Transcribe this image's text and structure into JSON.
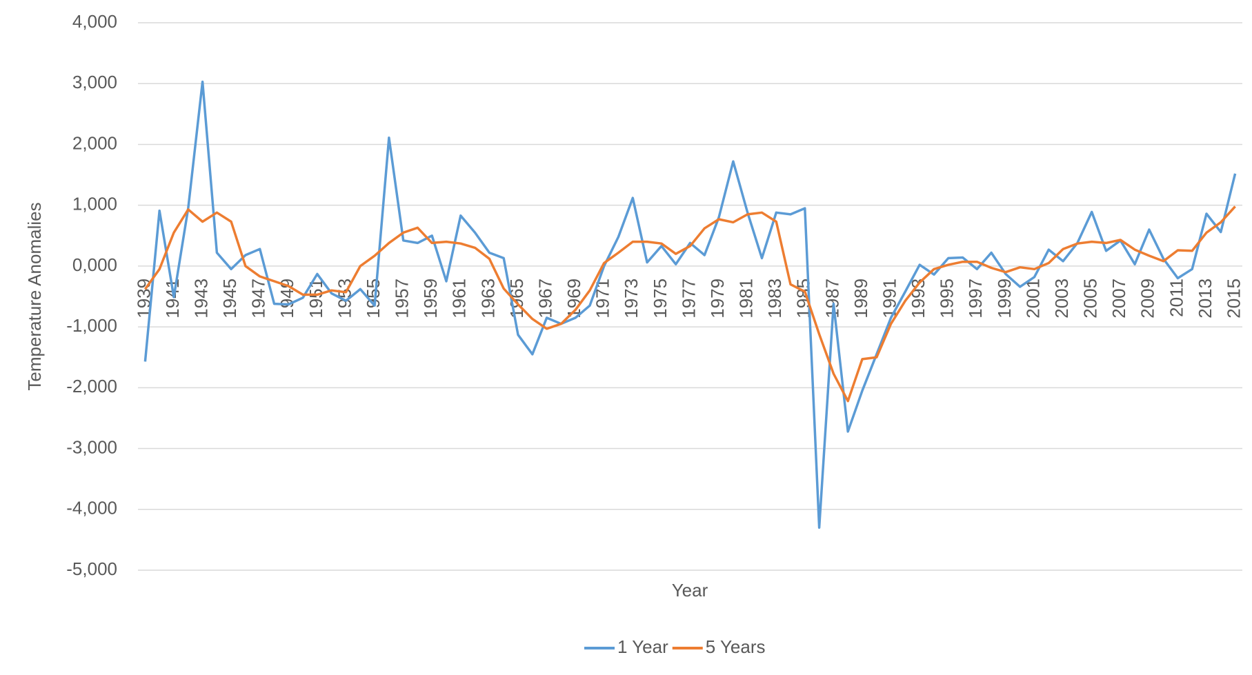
{
  "chart_data": {
    "type": "line",
    "x_label": "Year",
    "y_label": "Temperature Anomalies",
    "categories": [
      "1939",
      null,
      "1941",
      null,
      "1943",
      null,
      "1945",
      null,
      "1947",
      null,
      "1949",
      null,
      "1951",
      null,
      "1953",
      null,
      "1955",
      null,
      "1957",
      null,
      "1959",
      null,
      "1961",
      null,
      "1963",
      null,
      "1965",
      null,
      "1967",
      null,
      "1969",
      null,
      "1971",
      null,
      "1973",
      null,
      "1975",
      null,
      "1977",
      null,
      "1979",
      null,
      "1981",
      null,
      "1983",
      null,
      "1985",
      null,
      "1987",
      null,
      "1989",
      null,
      "1991",
      null,
      "1993",
      null,
      "1995",
      null,
      "1997",
      null,
      "1999",
      null,
      "2001",
      null,
      "2003",
      null,
      "2005",
      null,
      "2007",
      null,
      "2009",
      null,
      "2011",
      null,
      "2013",
      null,
      "2015"
    ],
    "series": [
      {
        "name": "1 Year",
        "color": "#5b9bd5",
        "values": [
          -1.57,
          0.91,
          -0.51,
          0.95,
          3.03,
          0.22,
          -0.05,
          0.18,
          0.28,
          -0.62,
          -0.63,
          -0.52,
          -0.13,
          -0.45,
          -0.57,
          -0.38,
          -0.65,
          2.11,
          0.42,
          0.38,
          0.5,
          -0.25,
          0.83,
          0.55,
          0.22,
          0.13,
          -1.13,
          -1.45,
          -0.85,
          -0.95,
          -0.85,
          -0.65,
          0.0,
          0.48,
          1.12,
          0.06,
          0.33,
          0.03,
          0.38,
          0.18,
          0.8,
          1.72,
          0.88,
          0.13,
          0.88,
          0.85,
          0.95,
          -4.3,
          -0.62,
          -2.72,
          -2.05,
          -1.45,
          -0.85,
          -0.42,
          0.02,
          -0.14,
          0.13,
          0.14,
          -0.05,
          0.22,
          -0.13,
          -0.34,
          -0.18,
          0.27,
          0.08,
          0.38,
          0.89,
          0.25,
          0.42,
          0.03,
          0.6,
          0.12,
          -0.2,
          -0.05,
          0.86,
          0.56,
          1.52
        ]
      },
      {
        "name": "5 Years",
        "color": "#ed7d31",
        "values": [
          -0.38,
          -0.05,
          0.55,
          0.93,
          0.73,
          0.88,
          0.73,
          0.0,
          -0.17,
          -0.25,
          -0.33,
          -0.47,
          -0.47,
          -0.4,
          -0.43,
          0.0,
          0.17,
          0.38,
          0.55,
          0.63,
          0.38,
          0.4,
          0.37,
          0.3,
          0.12,
          -0.37,
          -0.63,
          -0.87,
          -1.03,
          -0.95,
          -0.72,
          -0.4,
          0.05,
          0.22,
          0.4,
          0.4,
          0.37,
          0.2,
          0.33,
          0.62,
          0.77,
          0.72,
          0.85,
          0.88,
          0.73,
          -0.3,
          -0.42,
          -1.12,
          -1.77,
          -2.22,
          -1.53,
          -1.5,
          -0.95,
          -0.57,
          -0.27,
          -0.05,
          0.02,
          0.07,
          0.07,
          -0.03,
          -0.1,
          -0.02,
          -0.05,
          0.05,
          0.28,
          0.37,
          0.4,
          0.38,
          0.43,
          0.27,
          0.17,
          0.08,
          0.26,
          0.25,
          0.55,
          0.72,
          0.98
        ]
      }
    ],
    "ylim": [
      -5,
      4
    ],
    "yticks": [
      {
        "value": -5,
        "label": "-5,000"
      },
      {
        "value": -4,
        "label": "-4,000"
      },
      {
        "value": -3,
        "label": "-3,000"
      },
      {
        "value": -2,
        "label": "-2,000"
      },
      {
        "value": -1,
        "label": "-1,000"
      },
      {
        "value": 0,
        "label": "0,000"
      },
      {
        "value": 1,
        "label": "1,000"
      },
      {
        "value": 2,
        "label": "2,000"
      },
      {
        "value": 3,
        "label": "3,000"
      },
      {
        "value": 4,
        "label": "4,000"
      }
    ],
    "grid": true
  }
}
